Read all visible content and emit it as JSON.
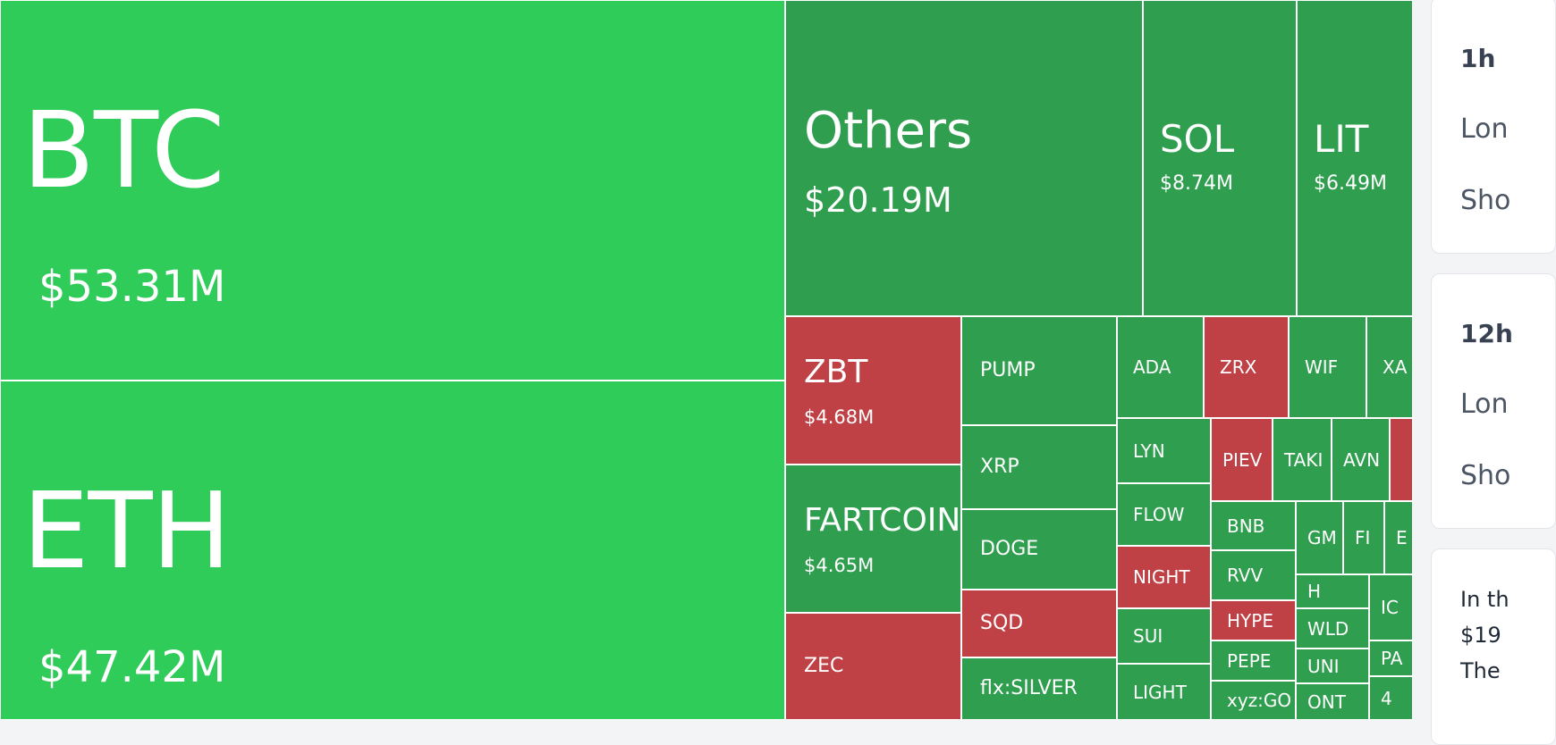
{
  "colors": {
    "up_big": "#30cc5a",
    "up": "#2f9e4f",
    "down": "#bf4045"
  },
  "treemap": {
    "tiles": [
      {
        "symbol": "BTC",
        "value": "$53.31M",
        "trend": "up_big",
        "size": "xl"
      },
      {
        "symbol": "ETH",
        "value": "$47.42M",
        "trend": "up_big",
        "size": "xl"
      },
      {
        "symbol": "Others",
        "value": "$20.19M",
        "trend": "up",
        "size": "l"
      },
      {
        "symbol": "SOL",
        "value": "$8.74M",
        "trend": "up",
        "size": "m"
      },
      {
        "symbol": "LIT",
        "value": "$6.49M",
        "trend": "up",
        "size": "m"
      },
      {
        "symbol": "ZBT",
        "value": "$4.68M",
        "trend": "down",
        "size": "s"
      },
      {
        "symbol": "FARTCOIN",
        "value": "$4.65M",
        "trend": "up",
        "size": "s"
      },
      {
        "symbol": "ZEC",
        "value": "",
        "trend": "down",
        "size": "xs"
      },
      {
        "symbol": "PUMP",
        "value": "",
        "trend": "up",
        "size": "xs"
      },
      {
        "symbol": "XRP",
        "value": "",
        "trend": "up",
        "size": "xs"
      },
      {
        "symbol": "DOGE",
        "value": "",
        "trend": "up",
        "size": "xs"
      },
      {
        "symbol": "SQD",
        "value": "",
        "trend": "down",
        "size": "xs"
      },
      {
        "symbol": "flx:SILVER",
        "value": "",
        "trend": "up",
        "size": "xs"
      },
      {
        "symbol": "ADA",
        "value": "",
        "trend": "up",
        "size": "xxs"
      },
      {
        "symbol": "ZRX",
        "value": "",
        "trend": "down",
        "size": "xxs"
      },
      {
        "symbol": "WIF",
        "value": "",
        "trend": "up",
        "size": "xxs"
      },
      {
        "symbol": "XA",
        "value": "",
        "trend": "up",
        "size": "xxs"
      },
      {
        "symbol": "LYN",
        "value": "",
        "trend": "up",
        "size": "xxs"
      },
      {
        "symbol": "FLOW",
        "value": "",
        "trend": "up",
        "size": "xxs"
      },
      {
        "symbol": "NIGHT",
        "value": "",
        "trend": "down",
        "size": "xxs"
      },
      {
        "symbol": "SUI",
        "value": "",
        "trend": "up",
        "size": "xxs"
      },
      {
        "symbol": "LIGHT",
        "value": "",
        "trend": "up",
        "size": "xxs"
      },
      {
        "symbol": "PIEV",
        "value": "",
        "trend": "down",
        "size": "xxxs"
      },
      {
        "symbol": "TAKI",
        "value": "",
        "trend": "up",
        "size": "xxxs"
      },
      {
        "symbol": "AVN",
        "value": "",
        "trend": "up",
        "size": "xxxs"
      },
      {
        "symbol": "",
        "value": "",
        "trend": "down",
        "size": "xxxs"
      },
      {
        "symbol": "BNB",
        "value": "",
        "trend": "up",
        "size": "xxs"
      },
      {
        "symbol": "RVV",
        "value": "",
        "trend": "up",
        "size": "xxs"
      },
      {
        "symbol": "HYPE",
        "value": "",
        "trend": "down",
        "size": "xxs"
      },
      {
        "symbol": "PEPE",
        "value": "",
        "trend": "up",
        "size": "xxs"
      },
      {
        "symbol": "xyz:GO",
        "value": "",
        "trend": "up",
        "size": "xxs"
      },
      {
        "symbol": "GM",
        "value": "",
        "trend": "up",
        "size": "xxxs"
      },
      {
        "symbol": "FI",
        "value": "",
        "trend": "up",
        "size": "xxxs"
      },
      {
        "symbol": "E",
        "value": "",
        "trend": "up",
        "size": "xxxs"
      },
      {
        "symbol": "H",
        "value": "",
        "trend": "up",
        "size": "xxxs"
      },
      {
        "symbol": "WLD",
        "value": "",
        "trend": "up",
        "size": "xxxs"
      },
      {
        "symbol": "UNI",
        "value": "",
        "trend": "up",
        "size": "xxxs"
      },
      {
        "symbol": "ONT",
        "value": "",
        "trend": "up",
        "size": "xxxs"
      },
      {
        "symbol": "IC",
        "value": "",
        "trend": "up",
        "size": "xxxs"
      },
      {
        "symbol": "PA",
        "value": "",
        "trend": "up",
        "size": "xxxs"
      },
      {
        "symbol": "4",
        "value": "",
        "trend": "up",
        "size": "xxxs"
      }
    ]
  },
  "side": {
    "card1": {
      "title": "1h",
      "long": "Lon",
      "short": "Sho"
    },
    "card2": {
      "title": "12h",
      "long": "Lon",
      "short": "Sho"
    },
    "card3": {
      "line1": "In th",
      "line2": "$19",
      "line3": "The"
    }
  }
}
